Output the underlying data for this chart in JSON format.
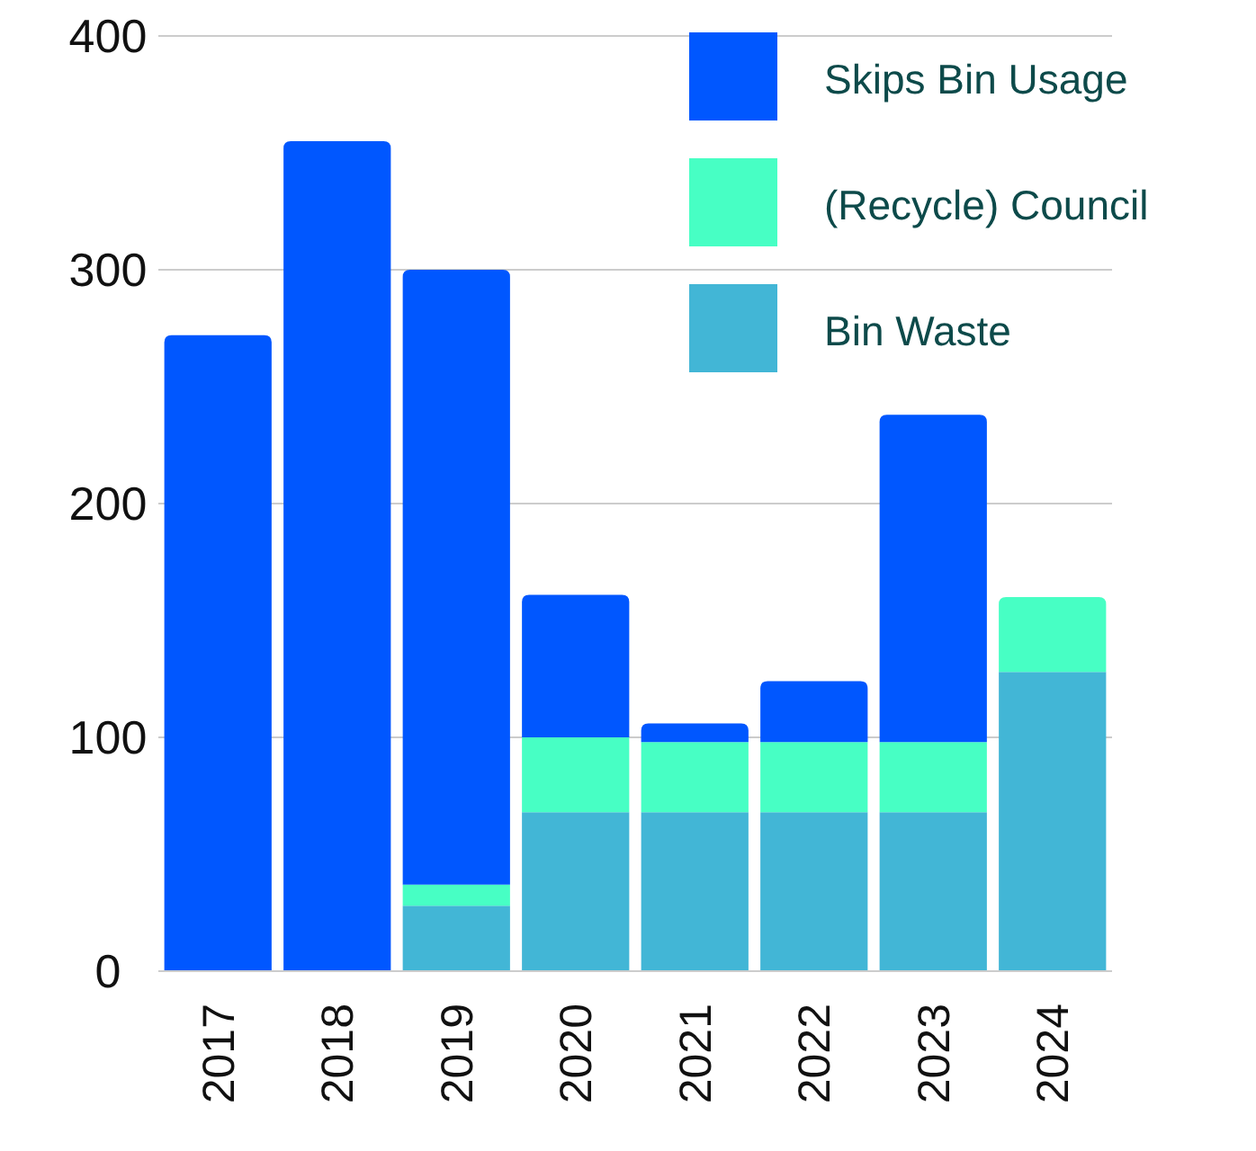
{
  "chart_data": {
    "type": "bar",
    "stacked": true,
    "categories": [
      "2017",
      "2018",
      "2019",
      "2020",
      "2021",
      "2022",
      "2023",
      "2024"
    ],
    "series": [
      {
        "name": "Bin Waste",
        "color": "#42b6d6",
        "values": [
          null,
          null,
          28,
          68,
          68,
          68,
          68,
          128
        ]
      },
      {
        "name": "(Recycle) Council",
        "color": "#47ffc4",
        "values": [
          null,
          null,
          9,
          32,
          30,
          30,
          30,
          32
        ]
      },
      {
        "name": "Skips Bin Usage",
        "color": "#0057ff",
        "values": [
          272,
          355,
          263,
          61,
          8,
          26,
          140,
          null
        ]
      }
    ],
    "ylim": [
      0,
      400
    ],
    "yticks": [
      0,
      100,
      200,
      300,
      400
    ],
    "grid": "y",
    "legend": "top right"
  }
}
